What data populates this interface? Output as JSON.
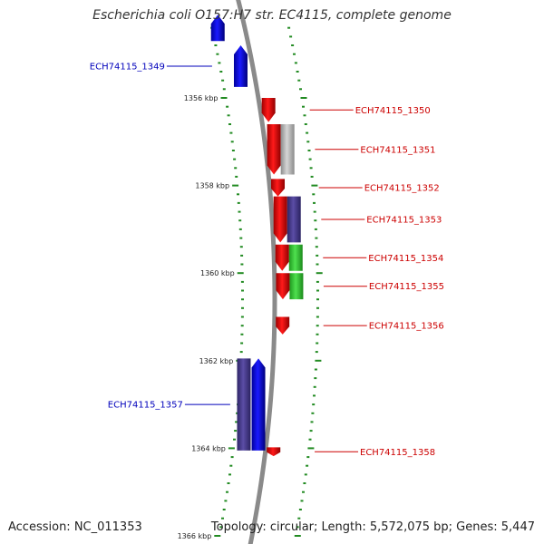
{
  "title": "Escherichia coli O157:H7 str. EC4115, complete genome",
  "accession": "Accession: NC_011353",
  "summary": "Topology: circular; Length: 5,572,075 bp; Genes: 5,447",
  "colors": {
    "blue": "#0000ee",
    "red": "#ee0000",
    "purple": "#4b3d8f",
    "grey": "#b9b9b9",
    "green": "#33cc33",
    "backbone": "#8a8a8a",
    "tick": "#228b22",
    "label_left": "#0000bb",
    "label_right": "#cc0000"
  },
  "scale": {
    "labels": [
      {
        "text": "1356 kbp",
        "kbp": 1356
      },
      {
        "text": "1358 kbp",
        "kbp": 1358
      },
      {
        "text": "1360 kbp",
        "kbp": 1360
      },
      {
        "text": "1362 kbp",
        "kbp": 1362
      },
      {
        "text": "1364 kbp",
        "kbp": 1364
      },
      {
        "text": "1366 kbp",
        "kbp": 1366
      }
    ]
  },
  "genes": [
    {
      "label": "ECH74115_1349",
      "start_kbp": 1354.8,
      "end_kbp": 1355.75,
      "strand": "+",
      "color": "blue",
      "side": "left"
    },
    {
      "label": "ECH74115_1350",
      "start_kbp": 1356.0,
      "end_kbp": 1356.55,
      "strand": "-",
      "color": "red",
      "side": "right"
    },
    {
      "label": "ECH74115_1351",
      "start_kbp": 1356.6,
      "end_kbp": 1357.75,
      "strand": "-",
      "color": "red",
      "side": "right"
    },
    {
      "label": "ECH74115_1352",
      "start_kbp": 1357.85,
      "end_kbp": 1358.25,
      "strand": "-",
      "color": "red",
      "side": "right"
    },
    {
      "label": "ECH74115_1353",
      "start_kbp": 1358.25,
      "end_kbp": 1359.3,
      "strand": "-",
      "color": "red",
      "side": "right"
    },
    {
      "label": "ECH74115_1354",
      "start_kbp": 1359.35,
      "end_kbp": 1359.95,
      "strand": "-",
      "color": "red",
      "side": "right"
    },
    {
      "label": "ECH74115_1355",
      "start_kbp": 1360.0,
      "end_kbp": 1360.6,
      "strand": "-",
      "color": "red",
      "side": "right"
    },
    {
      "label": "ECH74115_1356",
      "start_kbp": 1361.0,
      "end_kbp": 1361.4,
      "strand": "-",
      "color": "red",
      "side": "right"
    },
    {
      "label": "ECH74115_1357",
      "start_kbp": 1361.95,
      "end_kbp": 1364.05,
      "strand": "+",
      "color": "blue",
      "side": "left"
    },
    {
      "label": "ECH74115_1358",
      "start_kbp": 1363.98,
      "end_kbp": 1364.18,
      "strand": "-",
      "color": "red",
      "side": "right"
    }
  ],
  "features": [
    {
      "start_kbp": 1354.1,
      "end_kbp": 1354.7,
      "ring": "outer-left",
      "color": "blue",
      "strand": "+"
    },
    {
      "start_kbp": 1356.6,
      "end_kbp": 1357.75,
      "ring": "outer-right",
      "color": "grey"
    },
    {
      "start_kbp": 1358.25,
      "end_kbp": 1359.3,
      "ring": "outer-right",
      "color": "purple"
    },
    {
      "start_kbp": 1359.35,
      "end_kbp": 1359.95,
      "ring": "outer-right",
      "color": "green"
    },
    {
      "start_kbp": 1360.0,
      "end_kbp": 1360.6,
      "ring": "outer-right",
      "color": "green"
    },
    {
      "start_kbp": 1361.95,
      "end_kbp": 1364.05,
      "ring": "outer-left",
      "color": "purple"
    }
  ]
}
